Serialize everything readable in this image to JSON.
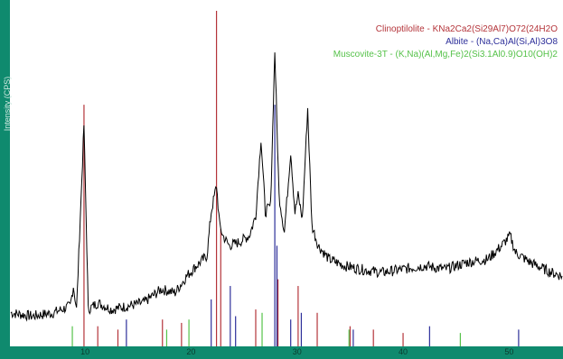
{
  "chart_data": {
    "type": "line",
    "ylabel": "Intensity (CPS)",
    "xlim": [
      3,
      55
    ],
    "ylim": [
      0,
      100
    ],
    "xticks": [
      10,
      20,
      30,
      40,
      50
    ],
    "legend_position": "top-right",
    "series": [
      {
        "name": "Clinoptilolite - KNa2Ca2(Si29Al7)O72(24H2O",
        "color": "#b4343a"
      },
      {
        "name": "Albite - (Na,Ca)Al(Si,Al)3O8",
        "color": "#2d2f9a"
      },
      {
        "name": "Muscovite-3T - (K,Na)(Al,Mg,Fe)2(Si3.1Al0.9)O10(OH)2",
        "color": "#56c24a"
      }
    ],
    "reference_lines": [
      {
        "series": 0,
        "peaks": [
          [
            9.9,
            72
          ],
          [
            11.2,
            6
          ],
          [
            13.1,
            5
          ],
          [
            17.3,
            8
          ],
          [
            19.1,
            7
          ],
          [
            22.4,
            100
          ],
          [
            22.8,
            35
          ],
          [
            26.1,
            11
          ],
          [
            28.2,
            20
          ],
          [
            30.1,
            18
          ],
          [
            31.9,
            10
          ],
          [
            35.0,
            6
          ],
          [
            37.2,
            5
          ],
          [
            40.0,
            4
          ]
        ]
      },
      {
        "series": 1,
        "peaks": [
          [
            13.9,
            8
          ],
          [
            21.9,
            14
          ],
          [
            23.7,
            18
          ],
          [
            24.2,
            9
          ],
          [
            27.9,
            72
          ],
          [
            28.1,
            30
          ],
          [
            29.4,
            8
          ],
          [
            30.4,
            10
          ],
          [
            35.3,
            5
          ],
          [
            42.5,
            6
          ],
          [
            50.9,
            5
          ]
        ]
      },
      {
        "series": 2,
        "peaks": [
          [
            8.8,
            6
          ],
          [
            17.7,
            5
          ],
          [
            19.8,
            8
          ],
          [
            26.7,
            10
          ],
          [
            34.9,
            5
          ],
          [
            45.4,
            4
          ]
        ]
      }
    ],
    "pattern": [
      [
        3,
        10
      ],
      [
        5,
        9
      ],
      [
        7,
        10
      ],
      [
        8.6,
        12
      ],
      [
        8.9,
        18
      ],
      [
        9.2,
        11
      ],
      [
        9.9,
        66
      ],
      [
        10.3,
        11
      ],
      [
        11.2,
        13
      ],
      [
        12.5,
        11
      ],
      [
        14,
        12
      ],
      [
        15.5,
        13
      ],
      [
        17.2,
        17
      ],
      [
        18.5,
        16
      ],
      [
        19.6,
        21
      ],
      [
        20.5,
        24
      ],
      [
        21.5,
        27
      ],
      [
        21.9,
        40
      ],
      [
        22.4,
        48
      ],
      [
        22.7,
        36
      ],
      [
        23.0,
        33
      ],
      [
        23.6,
        30
      ],
      [
        24.5,
        31
      ],
      [
        25.5,
        33
      ],
      [
        26.1,
        39
      ],
      [
        26.6,
        62
      ],
      [
        27.0,
        40
      ],
      [
        27.5,
        42
      ],
      [
        27.9,
        88
      ],
      [
        28.3,
        45
      ],
      [
        28.8,
        34
      ],
      [
        29.4,
        58
      ],
      [
        29.8,
        40
      ],
      [
        30.1,
        45
      ],
      [
        30.5,
        38
      ],
      [
        31.0,
        71
      ],
      [
        31.4,
        36
      ],
      [
        32.0,
        30
      ],
      [
        33,
        26
      ],
      [
        34.5,
        24
      ],
      [
        36,
        23
      ],
      [
        38,
        22
      ],
      [
        40,
        23
      ],
      [
        42,
        24
      ],
      [
        44,
        23
      ],
      [
        46,
        25
      ],
      [
        48,
        26
      ],
      [
        49.3,
        30
      ],
      [
        50.1,
        33
      ],
      [
        50.6,
        28
      ],
      [
        52,
        25
      ],
      [
        54,
        22
      ],
      [
        55,
        21
      ]
    ]
  }
}
